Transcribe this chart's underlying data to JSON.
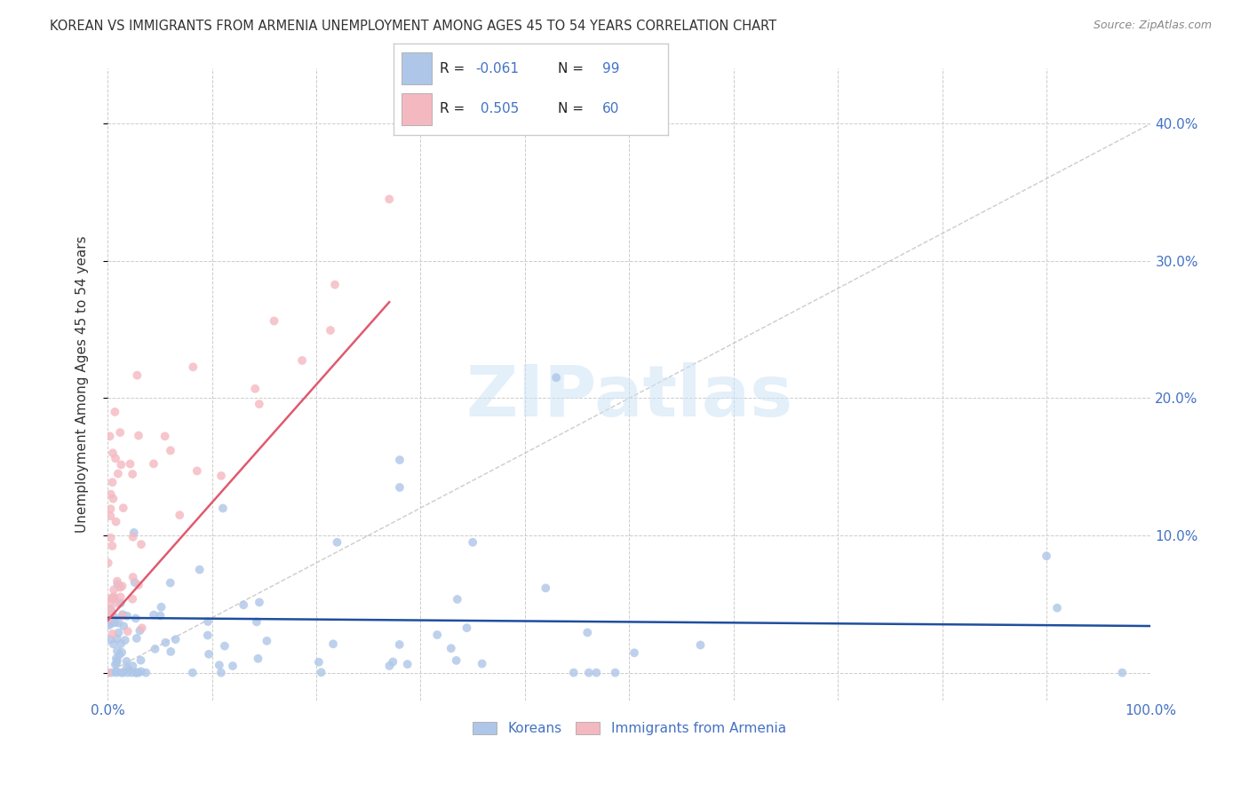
{
  "title": "KOREAN VS IMMIGRANTS FROM ARMENIA UNEMPLOYMENT AMONG AGES 45 TO 54 YEARS CORRELATION CHART",
  "source": "Source: ZipAtlas.com",
  "ylabel": "Unemployment Among Ages 45 to 54 years",
  "xlim": [
    0.0,
    1.0
  ],
  "ylim": [
    -0.02,
    0.44
  ],
  "korean_color": "#aec6e8",
  "armenia_color": "#f4b8c1",
  "korean_line_color": "#1f4e9e",
  "armenia_line_color": "#e05a6e",
  "diagonal_color": "#cccccc",
  "watermark": "ZIPatlas",
  "tick_color": "#4472c4",
  "label_color": "#333333",
  "source_color": "#888888",
  "legend_text_color": "#222222",
  "legend_value_color": "#4472c4",
  "legend_r_neg": "-0.061",
  "legend_r_pos": "0.505",
  "legend_n1": "99",
  "legend_n2": "60"
}
